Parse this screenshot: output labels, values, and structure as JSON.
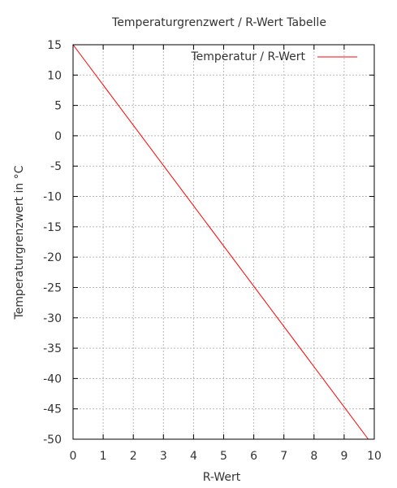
{
  "chart_data": {
    "type": "line",
    "title": "Temperaturgrenzwert / R-Wert Tabelle",
    "xlabel": "R-Wert",
    "ylabel": "Temperaturgrenzwert in °C",
    "xlim": [
      0,
      10
    ],
    "ylim": [
      -50,
      15
    ],
    "xticks": [
      0,
      1,
      2,
      3,
      4,
      5,
      6,
      7,
      8,
      9,
      10
    ],
    "yticks": [
      15,
      10,
      5,
      0,
      -5,
      -10,
      -15,
      -20,
      -25,
      -30,
      -35,
      -40,
      -45,
      -50
    ],
    "grid": true,
    "legend_position": "top-right",
    "series": [
      {
        "name": "Temperatur / R-Wert",
        "color": "#ff0000",
        "x": [
          0,
          9.8
        ],
        "y": [
          15,
          -50
        ]
      }
    ]
  }
}
